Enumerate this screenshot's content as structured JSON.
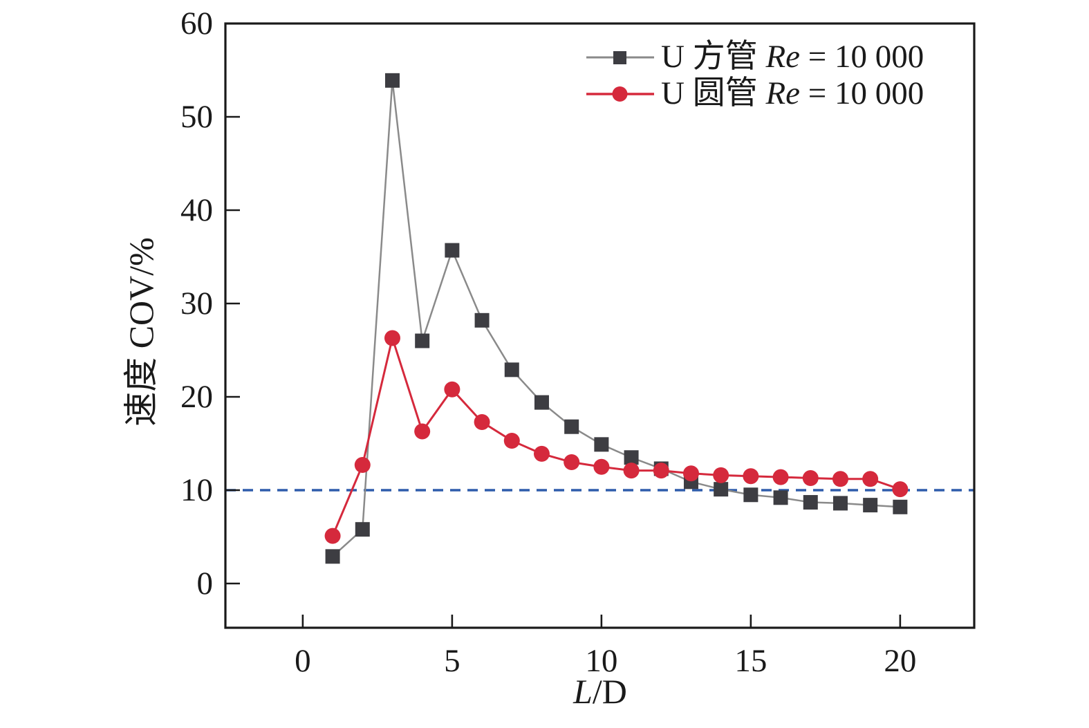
{
  "figure": {
    "background": "#ffffff",
    "axis_color": "#1a1a1a"
  },
  "chart_data": {
    "type": "line",
    "title": "",
    "xlabel": "L/D",
    "xlabel_parts": [
      "L",
      "/D"
    ],
    "ylabel": "速度 COV/%",
    "x_tick_labels": [
      "0",
      "5",
      "10",
      "15",
      "20"
    ],
    "x_tick_values": [
      0,
      5,
      10,
      15,
      20
    ],
    "y_tick_labels": [
      "0",
      "10",
      "20",
      "30",
      "40",
      "50",
      "60"
    ],
    "y_tick_values": [
      0,
      10,
      20,
      30,
      40,
      50,
      60
    ],
    "xlim": [
      -2.59,
      22.48
    ],
    "ylim": [
      -4.74,
      60
    ],
    "grid": false,
    "legend_position": "top-right-inside",
    "reference_line": {
      "y": 10,
      "style": "dashed",
      "color": "#2e5cab"
    },
    "x": [
      1,
      2,
      3,
      4,
      5,
      6,
      7,
      8,
      9,
      10,
      11,
      12,
      13,
      14,
      15,
      16,
      17,
      18,
      19,
      20
    ],
    "series": [
      {
        "name": "U 方管 Re = 10 000",
        "legend": {
          "prefix": "U 方管 ",
          "italic": "Re",
          "suffix": " = 10 000"
        },
        "marker": "square",
        "marker_color": "#3d3d42",
        "line_color": "#8a8a8a",
        "values": [
          2.9,
          5.8,
          53.9,
          26.0,
          35.7,
          28.2,
          22.9,
          19.4,
          16.8,
          14.9,
          13.5,
          12.3,
          10.9,
          10.1,
          9.5,
          9.2,
          8.7,
          8.6,
          8.4,
          8.2
        ]
      },
      {
        "name": "U 圆管 Re = 10 000",
        "legend": {
          "prefix": "U 圆管 ",
          "italic": "Re",
          "suffix": " = 10 000"
        },
        "marker": "circle",
        "marker_color": "#d5293c",
        "line_color": "#d5293c",
        "values": [
          5.1,
          12.7,
          26.3,
          16.3,
          20.8,
          17.3,
          15.3,
          13.9,
          13.0,
          12.5,
          12.1,
          12.1,
          11.8,
          11.6,
          11.5,
          11.4,
          11.3,
          11.2,
          11.2,
          10.1
        ]
      }
    ]
  }
}
